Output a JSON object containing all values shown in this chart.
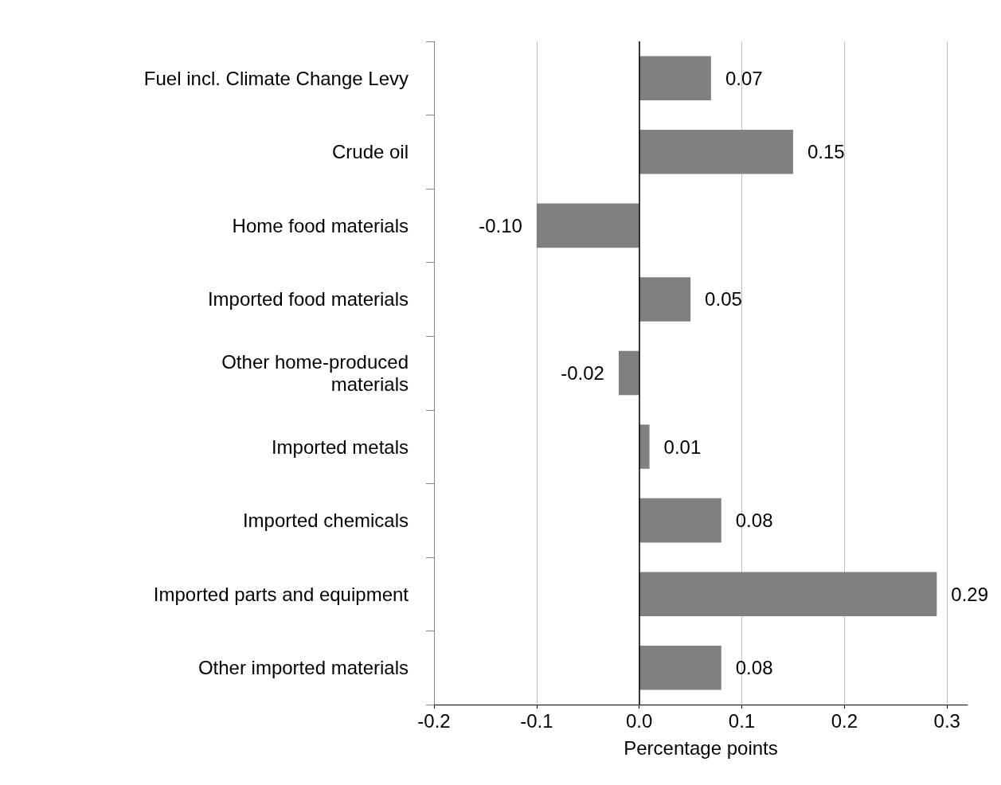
{
  "chart_data": {
    "type": "bar",
    "orientation": "horizontal",
    "xlabel": "Percentage points",
    "categories": [
      "Fuel incl. Climate Change Levy",
      "Crude oil",
      "Home food materials",
      "Imported food materials",
      "Other home-produced\nmaterials",
      "Imported metals",
      "Imported chemicals",
      "Imported parts and equipment",
      "Other imported materials"
    ],
    "values": [
      0.07,
      0.15,
      -0.1,
      0.05,
      -0.02,
      0.01,
      0.08,
      0.29,
      0.08
    ],
    "value_labels": [
      "0.07",
      "0.15",
      "-0.10",
      "0.05",
      "-0.02",
      "0.01",
      "0.08",
      "0.29",
      "0.08"
    ],
    "color": "#808080",
    "xlim": [
      -0.2,
      0.32
    ],
    "xticks": [
      -0.2,
      -0.1,
      {
        "value": 0,
        "label": "0.0"
      },
      0.1,
      0.2,
      0.3
    ],
    "ref_lines": [
      {
        "axis": "x",
        "value": 0,
        "color": "#000000"
      }
    ],
    "grid": "x"
  }
}
